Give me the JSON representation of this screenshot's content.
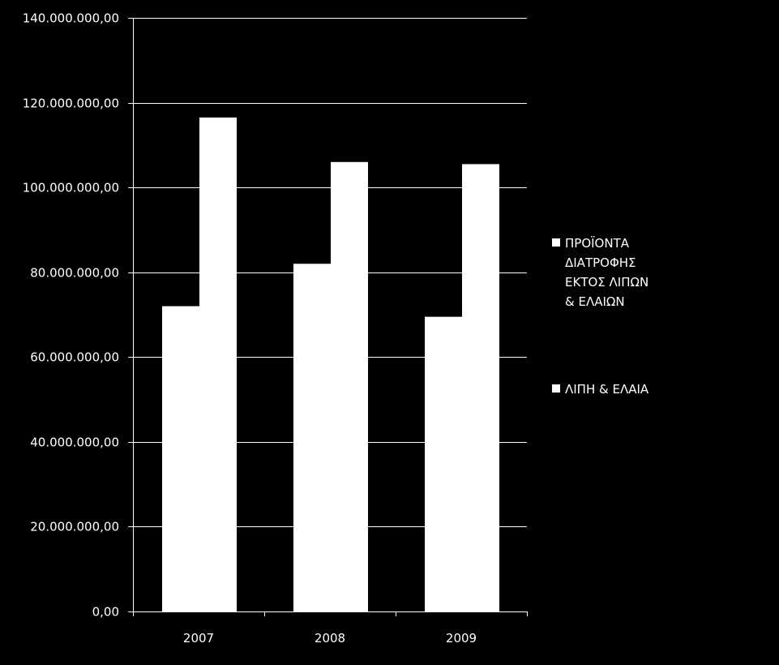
{
  "colors": {
    "background": "#000000",
    "foreground": "#ffffff"
  },
  "chart_data": {
    "type": "bar",
    "categories": [
      "2007",
      "2008",
      "2009"
    ],
    "series": [
      {
        "name": "ΠΡΟΪΟΝΤΑ ΔΙΑΤΡΟΦΗΣ ΕΚΤΟΣ ΛΙΠΩΝ & ΕΛΑΙΩΝ",
        "name_lines": [
          "ΠΡΟΪΟΝΤΑ",
          "ΔΙΑΤΡΟΦΗΣ",
          "ΕΚΤΟΣ ΛΙΠΩΝ",
          "& ΕΛΑΙΩΝ"
        ],
        "values": [
          72000000,
          82000000,
          69500000
        ]
      },
      {
        "name": "ΛΙΠΗ & ΕΛΑΙΑ",
        "name_lines": [
          "ΛΙΠΗ & ΕΛΑΙΑ"
        ],
        "values": [
          116500000,
          106000000,
          105500000
        ]
      }
    ],
    "ylim": [
      0,
      140000000
    ],
    "yticks": [
      0,
      20000000,
      40000000,
      60000000,
      80000000,
      100000000,
      120000000,
      140000000
    ],
    "ytick_labels": [
      "0,00",
      "20.000.000,00",
      "40.000.000,00",
      "60.000.000,00",
      "80.000.000,00",
      "100.000.000,00",
      "120.000.000,00",
      "140.000.000,00"
    ],
    "grid": true,
    "legend": "right",
    "title": "",
    "xlabel": "",
    "ylabel": ""
  }
}
